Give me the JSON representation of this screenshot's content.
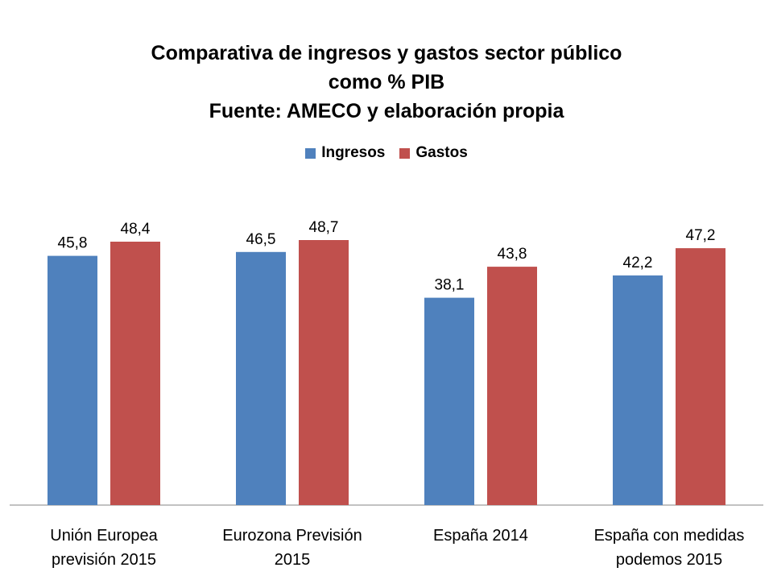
{
  "chart_data": {
    "type": "bar",
    "title": [
      "Comparativa de ingresos y gastos sector público",
      "como % PIB",
      "Fuente: AMECO y elaboración propia"
    ],
    "categories": [
      [
        "Unión Europea",
        "previsión 2015"
      ],
      [
        "Eurozona Previsión",
        "2015"
      ],
      [
        "España 2014"
      ],
      [
        "España con medidas",
        "podemos 2015"
      ]
    ],
    "series": [
      {
        "name": "Ingresos",
        "color": "#4F81BD",
        "values": [
          45.8,
          46.5,
          38.1,
          42.2
        ],
        "labels": [
          "45,8",
          "46,5",
          "38,1",
          "42,2"
        ]
      },
      {
        "name": "Gastos",
        "color": "#C0504D",
        "values": [
          48.4,
          48.7,
          43.8,
          47.2
        ],
        "labels": [
          "48,4",
          "48,7",
          "43,8",
          "47,2"
        ]
      }
    ],
    "xlabel": "",
    "ylabel": "",
    "ylim": [
      0,
      50
    ],
    "grid": false,
    "legend_position": "top-center"
  }
}
